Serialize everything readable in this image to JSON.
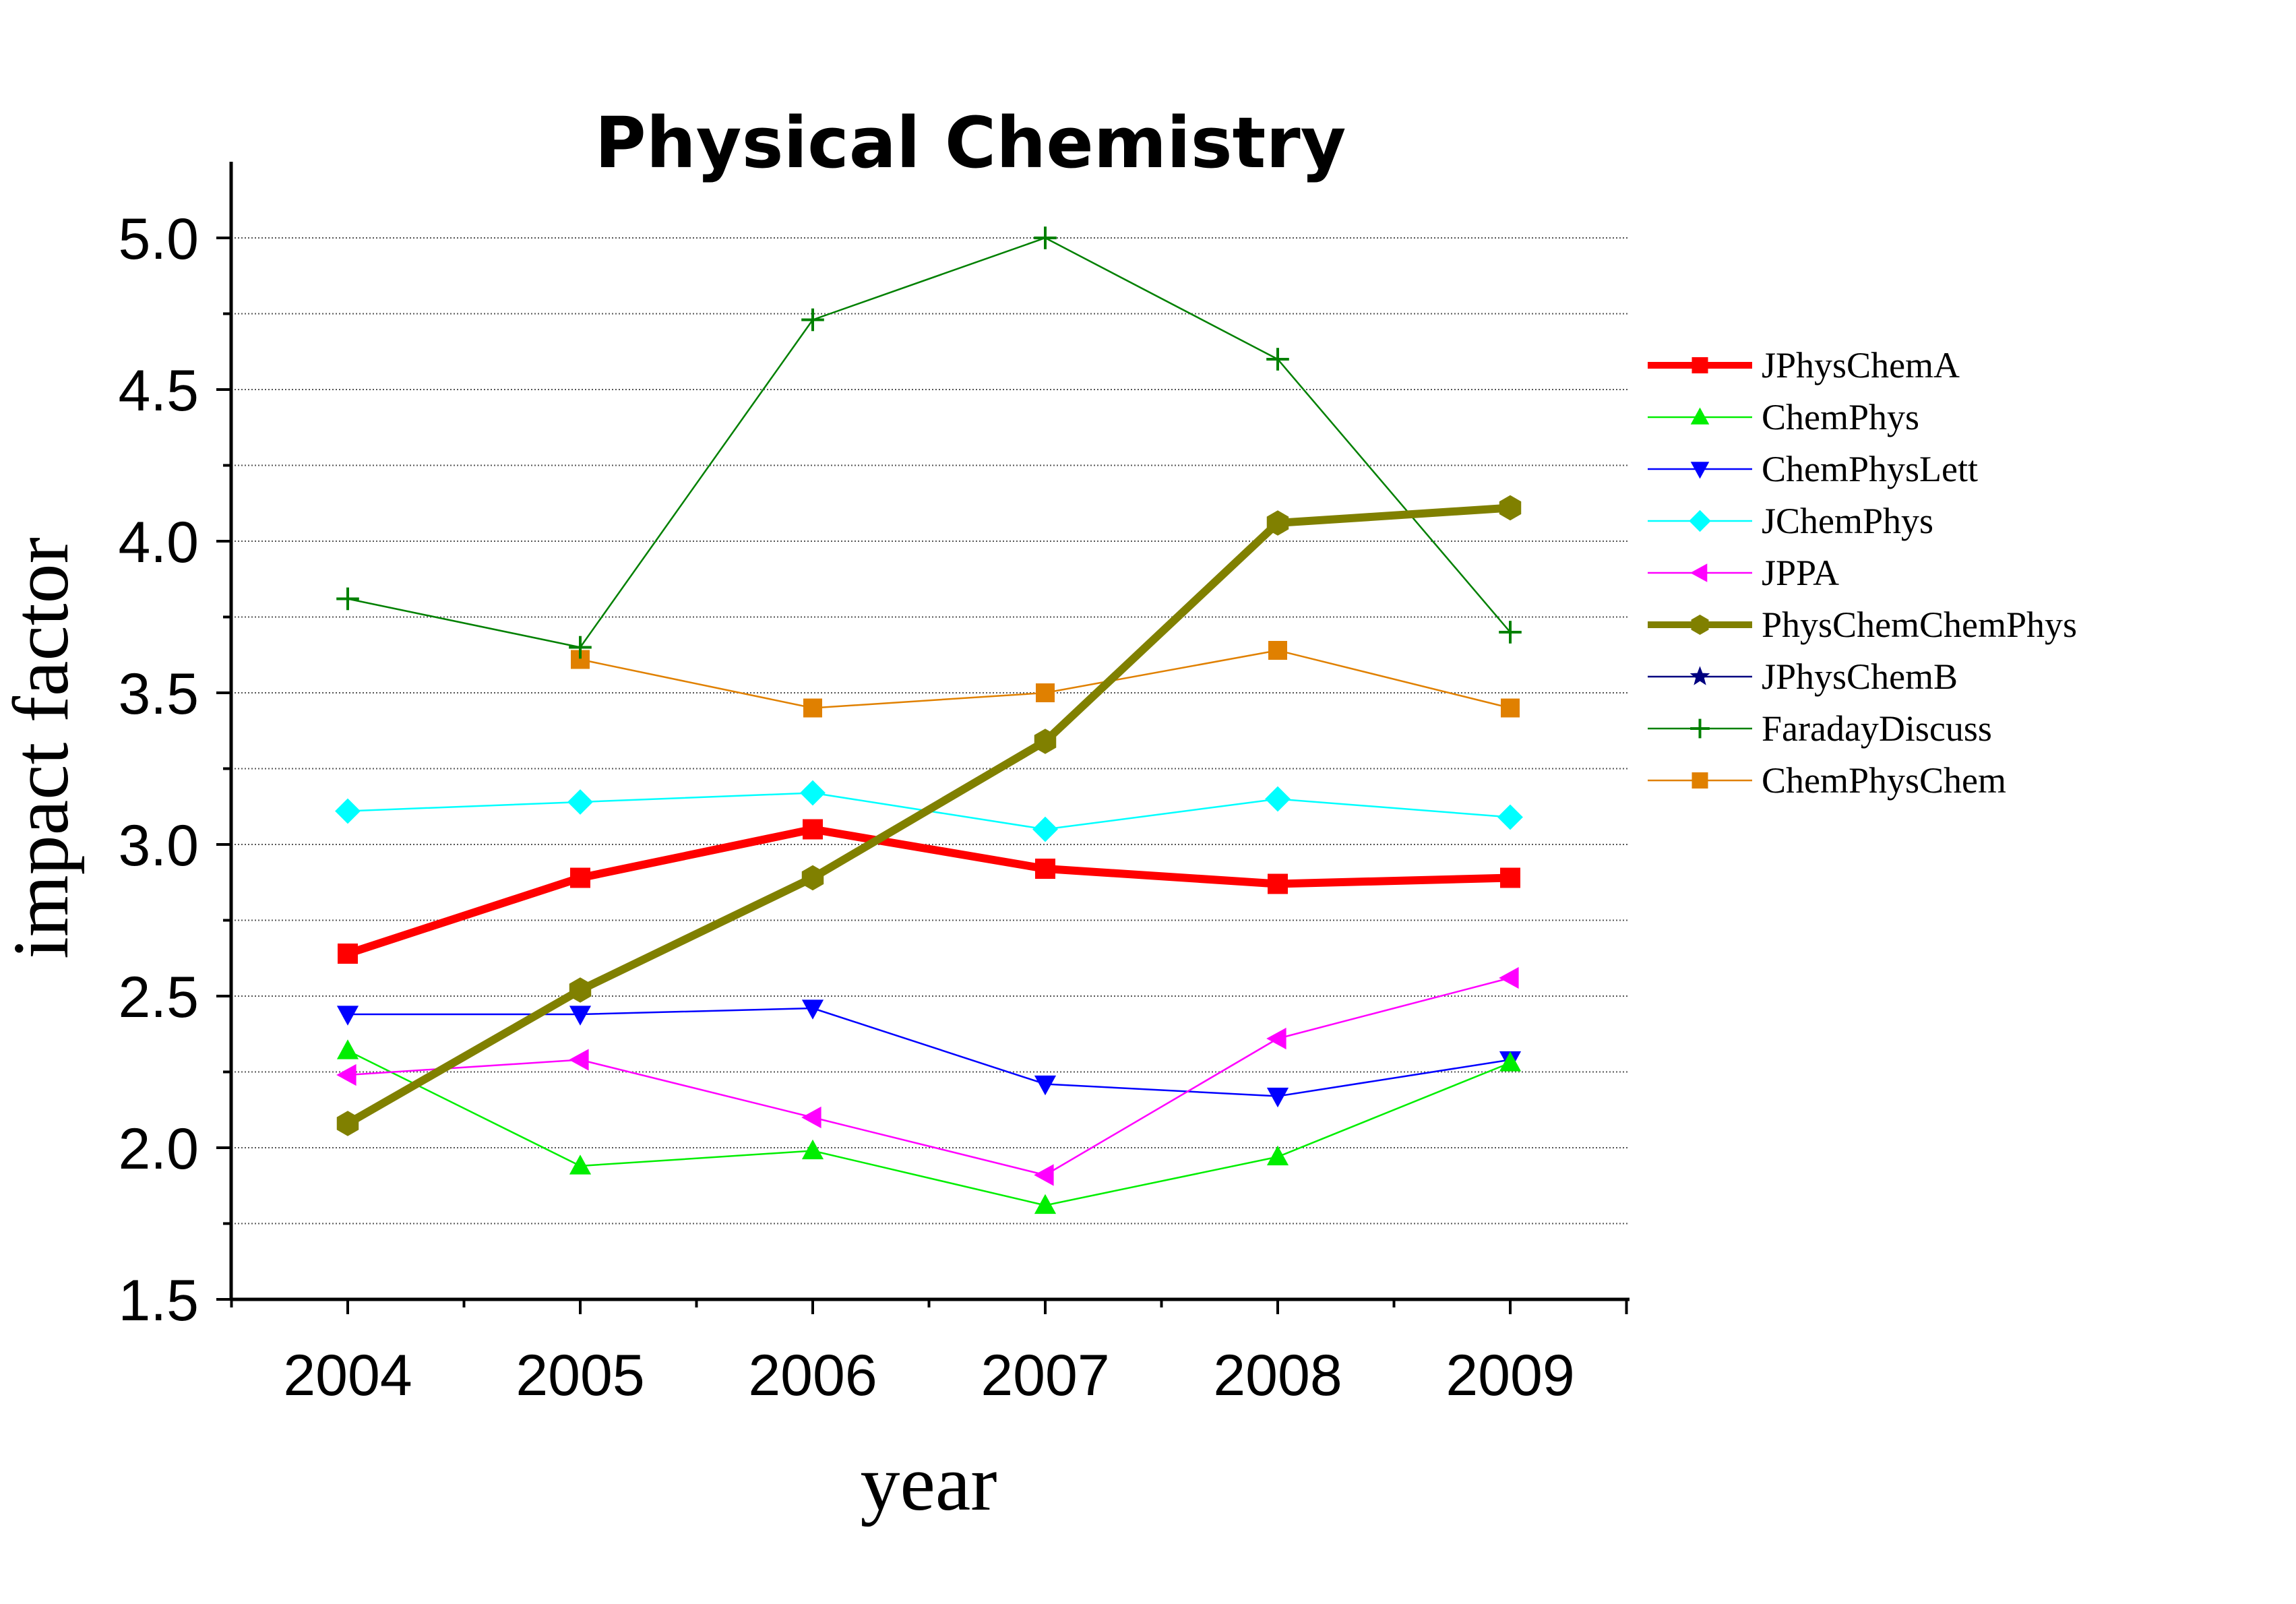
{
  "chart_data": {
    "type": "line",
    "title": "Physical Chemistry",
    "xlabel": "year",
    "ylabel": "impact factor",
    "categories": [
      "2004",
      "2005",
      "2006",
      "2007",
      "2008",
      "2009"
    ],
    "ylim": [
      1.5,
      5.25
    ],
    "yticks": [
      "1.5",
      "2.0",
      "2.5",
      "3.0",
      "3.5",
      "4.0",
      "4.5",
      "5.0"
    ],
    "grid": true,
    "legend_position": "right",
    "series": [
      {
        "name": "JPhysChemA",
        "marker": "square",
        "color": "#ff0000",
        "thick": true,
        "values": [
          2.64,
          2.89,
          3.05,
          2.92,
          2.87,
          2.89
        ]
      },
      {
        "name": "ChemPhys",
        "marker": "triangle-up",
        "color": "#00ee00",
        "thick": false,
        "values": [
          2.32,
          1.94,
          1.99,
          1.81,
          1.97,
          2.28
        ]
      },
      {
        "name": "ChemPhysLett",
        "marker": "triangle-down",
        "color": "#0000ff",
        "thick": false,
        "values": [
          2.44,
          2.44,
          2.46,
          2.21,
          2.17,
          2.29
        ]
      },
      {
        "name": "JChemPhys",
        "marker": "diamond",
        "color": "#00ffff",
        "thick": false,
        "values": [
          3.11,
          3.14,
          3.17,
          3.05,
          3.15,
          3.09
        ]
      },
      {
        "name": "JPPA",
        "marker": "triangle-left",
        "color": "#ff00ff",
        "thick": false,
        "values": [
          2.24,
          2.29,
          2.1,
          1.91,
          2.36,
          2.56
        ]
      },
      {
        "name": "PhysChemChemPhys",
        "marker": "hexagon",
        "color": "#808000",
        "thick": true,
        "values": [
          2.08,
          2.52,
          2.89,
          3.34,
          4.06,
          4.11
        ]
      },
      {
        "name": "JPhysChemB",
        "marker": "star",
        "color": "#000080",
        "thick": false,
        "values": [
          null,
          null,
          null,
          null,
          null,
          null
        ]
      },
      {
        "name": "FaradayDiscuss",
        "marker": "plus",
        "color": "#008000",
        "thick": false,
        "values": [
          3.81,
          3.65,
          4.73,
          5.0,
          4.6,
          3.7
        ]
      },
      {
        "name": "ChemPhysChem",
        "marker": "square",
        "color": "#e08000",
        "thick": false,
        "values": [
          null,
          3.61,
          3.45,
          3.5,
          3.64,
          3.45
        ]
      }
    ]
  }
}
